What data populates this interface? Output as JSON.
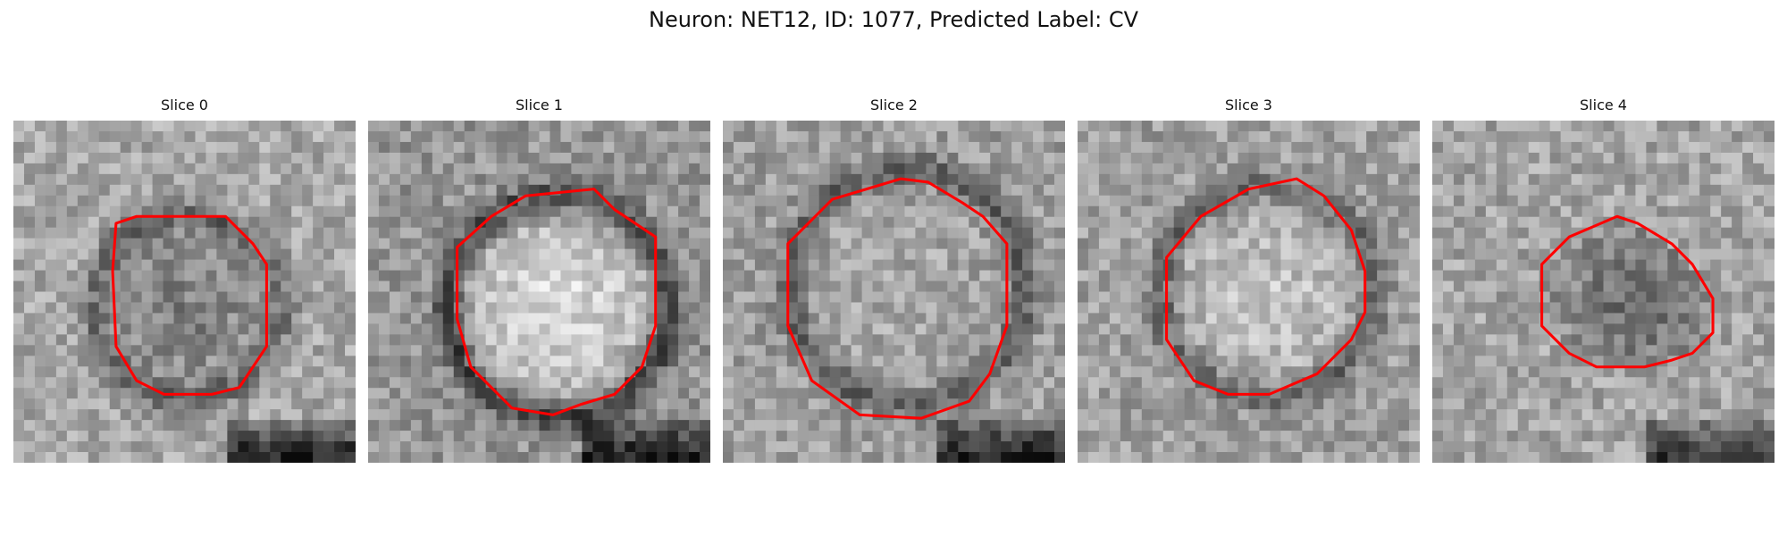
{
  "figure": {
    "title": "Neuron: NET12, ID: 1077, Predicted Label: CV",
    "contour_color": "#ff0000"
  },
  "panels": [
    {
      "title": "Slice 0",
      "image": {
        "mean_gray": 168,
        "ring": {
          "dark": true,
          "strength": 55
        },
        "interior": {
          "shade": -40
        },
        "dark_patch": {
          "present": true,
          "strength": 120
        }
      },
      "contour": [
        [
          0.3,
          0.3
        ],
        [
          0.36,
          0.28
        ],
        [
          0.62,
          0.28
        ],
        [
          0.7,
          0.36
        ],
        [
          0.74,
          0.42
        ],
        [
          0.74,
          0.66
        ],
        [
          0.66,
          0.78
        ],
        [
          0.58,
          0.8
        ],
        [
          0.44,
          0.8
        ],
        [
          0.36,
          0.76
        ],
        [
          0.3,
          0.66
        ],
        [
          0.29,
          0.44
        ]
      ]
    },
    {
      "title": "Slice 1",
      "image": {
        "mean_gray": 150,
        "ring": {
          "dark": true,
          "strength": 80
        },
        "interior": {
          "shade": 70
        },
        "dark_patch": {
          "present": true,
          "strength": 100
        }
      },
      "contour": [
        [
          0.26,
          0.37
        ],
        [
          0.36,
          0.28
        ],
        [
          0.46,
          0.22
        ],
        [
          0.66,
          0.2
        ],
        [
          0.72,
          0.26
        ],
        [
          0.84,
          0.34
        ],
        [
          0.84,
          0.6
        ],
        [
          0.8,
          0.72
        ],
        [
          0.72,
          0.8
        ],
        [
          0.62,
          0.83
        ],
        [
          0.54,
          0.86
        ],
        [
          0.42,
          0.84
        ],
        [
          0.3,
          0.72
        ],
        [
          0.26,
          0.58
        ]
      ]
    },
    {
      "title": "Slice 2",
      "image": {
        "mean_gray": 158,
        "ring": {
          "dark": true,
          "strength": 65
        },
        "interior": {
          "shade": 10
        },
        "dark_patch": {
          "present": true,
          "strength": 110
        }
      },
      "contour": [
        [
          0.19,
          0.36
        ],
        [
          0.32,
          0.23
        ],
        [
          0.42,
          0.2
        ],
        [
          0.52,
          0.17
        ],
        [
          0.6,
          0.18
        ],
        [
          0.7,
          0.24
        ],
        [
          0.76,
          0.28
        ],
        [
          0.83,
          0.36
        ],
        [
          0.83,
          0.6
        ],
        [
          0.78,
          0.74
        ],
        [
          0.72,
          0.82
        ],
        [
          0.58,
          0.87
        ],
        [
          0.4,
          0.86
        ],
        [
          0.26,
          0.76
        ],
        [
          0.19,
          0.6
        ]
      ]
    },
    {
      "title": "Slice 3",
      "image": {
        "mean_gray": 160,
        "ring": {
          "dark": true,
          "strength": 60
        },
        "interior": {
          "shade": 35
        },
        "dark_patch": {
          "present": false,
          "strength": 0
        }
      },
      "contour": [
        [
          0.26,
          0.4
        ],
        [
          0.36,
          0.28
        ],
        [
          0.5,
          0.2
        ],
        [
          0.64,
          0.17
        ],
        [
          0.72,
          0.22
        ],
        [
          0.8,
          0.32
        ],
        [
          0.84,
          0.44
        ],
        [
          0.84,
          0.56
        ],
        [
          0.8,
          0.64
        ],
        [
          0.7,
          0.74
        ],
        [
          0.56,
          0.8
        ],
        [
          0.44,
          0.8
        ],
        [
          0.34,
          0.76
        ],
        [
          0.26,
          0.64
        ],
        [
          0.26,
          0.5
        ]
      ]
    },
    {
      "title": "Slice 4",
      "image": {
        "mean_gray": 165,
        "ring": {
          "dark": false,
          "strength": 40
        },
        "interior": {
          "shade": -60
        },
        "dark_patch": {
          "present": true,
          "strength": 90
        }
      },
      "contour": [
        [
          0.32,
          0.42
        ],
        [
          0.4,
          0.34
        ],
        [
          0.54,
          0.28
        ],
        [
          0.6,
          0.3
        ],
        [
          0.7,
          0.36
        ],
        [
          0.76,
          0.42
        ],
        [
          0.82,
          0.52
        ],
        [
          0.82,
          0.62
        ],
        [
          0.76,
          0.68
        ],
        [
          0.7,
          0.7
        ],
        [
          0.62,
          0.72
        ],
        [
          0.48,
          0.72
        ],
        [
          0.4,
          0.68
        ],
        [
          0.32,
          0.6
        ]
      ]
    }
  ]
}
